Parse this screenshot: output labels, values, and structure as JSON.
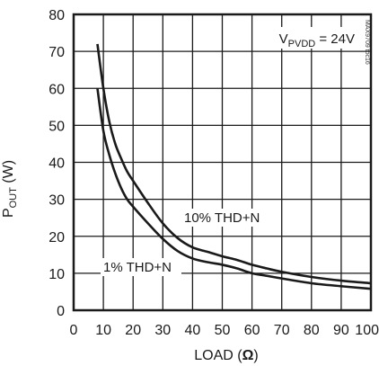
{
  "chart_data": {
    "type": "line",
    "title": "",
    "xlabel": "LOAD (",
    "xlabel_unit": "Ω",
    "xlabel_close": ")",
    "ylabel_main": "P",
    "ylabel_sub": "OUT",
    "ylabel_unit": " (W)",
    "xlim": [
      0,
      100
    ],
    "ylim": [
      0,
      80
    ],
    "xticks": [
      0,
      10,
      20,
      30,
      40,
      50,
      60,
      70,
      80,
      90,
      100
    ],
    "yticks": [
      0,
      10,
      20,
      30,
      40,
      50,
      60,
      70,
      80
    ],
    "xtick_labels": [
      "0",
      "10",
      "20",
      "30",
      "40",
      "50",
      "60",
      "70",
      "80",
      "90",
      "100"
    ],
    "ytick_labels": [
      "0",
      "10",
      "20",
      "30",
      "40",
      "50",
      "60",
      "70",
      "80"
    ],
    "grid": true,
    "condition": {
      "prefix": "V",
      "sub": "PVDD",
      "suffix": " = 24V"
    },
    "watermark": "MAX9709 toc16",
    "series": [
      {
        "name": "10% THD+N",
        "x": [
          8,
          10,
          12,
          14,
          16,
          18,
          20,
          25,
          30,
          35,
          40,
          45,
          50,
          55,
          60,
          65,
          70,
          80,
          90,
          100
        ],
        "y": [
          72,
          60,
          51,
          45,
          41,
          37.5,
          35,
          29,
          23.5,
          19.5,
          17,
          15.8,
          14.6,
          13.6,
          12.3,
          11.3,
          10.4,
          9,
          8,
          7.3
        ]
      },
      {
        "name": "1% THD+N",
        "x": [
          8,
          10,
          12,
          14,
          16,
          18,
          20,
          25,
          30,
          35,
          40,
          45,
          50,
          55,
          60,
          65,
          70,
          80,
          90,
          100
        ],
        "y": [
          60,
          48.5,
          42,
          37,
          33,
          30,
          28,
          23.5,
          19.3,
          16,
          14,
          13,
          12.3,
          11.3,
          10,
          9.3,
          8.6,
          7.3,
          6.5,
          5.8
        ]
      }
    ],
    "annotations": [
      "10% THD+N",
      "1% THD+N"
    ],
    "colors": {
      "line": "#1a1a1a",
      "grid": "#1a1a1a",
      "background": "#ffffff"
    }
  }
}
